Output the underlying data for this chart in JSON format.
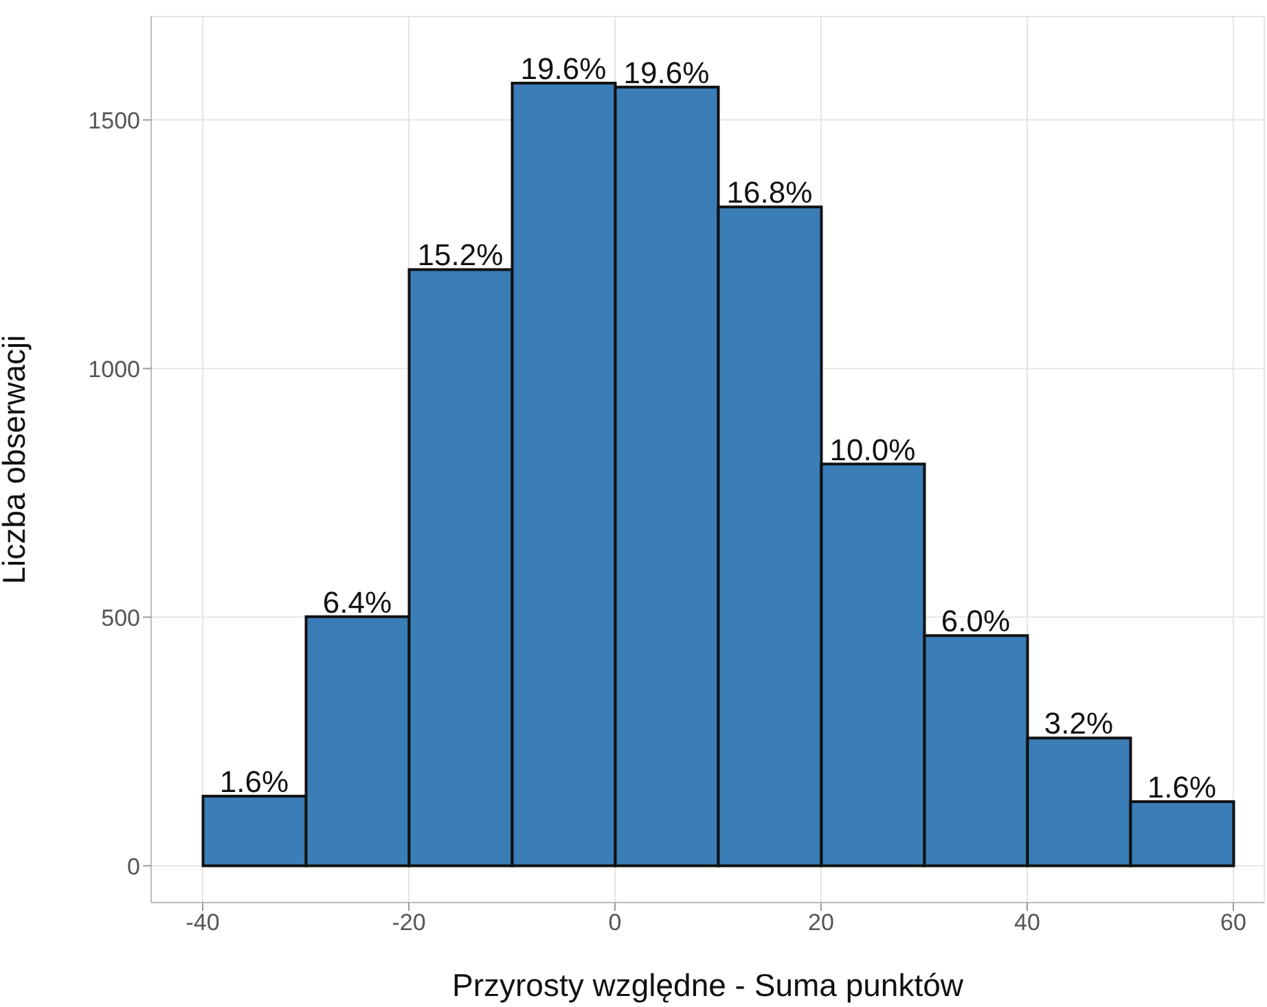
{
  "chart_data": {
    "type": "histogram",
    "xlabel": "Przyrosty względne - Suma punktów",
    "ylabel": "Liczba obserwacji",
    "bins": [
      -40,
      -30,
      -20,
      -10,
      0,
      10,
      20,
      30,
      40,
      50,
      60
    ],
    "values": [
      140,
      501,
      1199,
      1574,
      1566,
      1325,
      808,
      463,
      257,
      129
    ],
    "annotations": [
      {
        "text": "1.6%",
        "x": -35,
        "y": 140
      },
      {
        "text": "6.4%",
        "x": -25,
        "y": 501
      },
      {
        "text": "15.2%",
        "x": -15,
        "y": 1199
      },
      {
        "text": "19.6%",
        "x": -5,
        "y": 1574
      },
      {
        "text": "19.6%",
        "x": 5,
        "y": 1566
      },
      {
        "text": "16.8%",
        "x": 15,
        "y": 1325
      },
      {
        "text": "10.0%",
        "x": 25,
        "y": 808
      },
      {
        "text": "6.0%",
        "x": 35,
        "y": 463
      },
      {
        "text": "3.2%",
        "x": 45,
        "y": 257
      },
      {
        "text": "1.6%",
        "x": 55,
        "y": 129
      }
    ],
    "color": "#3a7db7",
    "xlim": [
      -45,
      63
    ],
    "xticks": [
      -40,
      -20,
      0,
      20,
      40,
      60
    ],
    "ylim": [
      -74,
      1708
    ],
    "yticks": [
      0,
      500,
      1000,
      1500
    ],
    "grid": true
  }
}
